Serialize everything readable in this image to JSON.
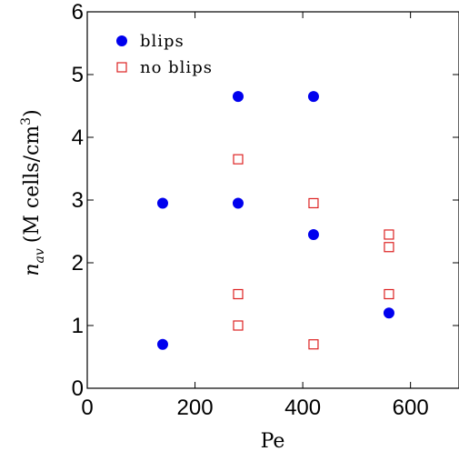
{
  "chart_data": {
    "type": "scatter",
    "xlabel": "Pe",
    "ylabel": "n_av (M cells/cm^3)",
    "ylabel_parts": {
      "symbol": "n",
      "subscript": "av",
      "unit_open": "(M cells/cm",
      "superscript": "3",
      "unit_close": ")"
    },
    "xlim": [
      0,
      690
    ],
    "ylim": [
      0,
      6
    ],
    "x_ticks": [
      0,
      200,
      400,
      600
    ],
    "y_ticks": [
      0,
      1,
      2,
      3,
      4,
      5,
      6
    ],
    "x_tick_labels": [
      "0",
      "200",
      "400",
      "600"
    ],
    "y_tick_labels": [
      "0",
      "1",
      "2",
      "3",
      "4",
      "5",
      "6"
    ],
    "grid": false,
    "legend_position": "top-left",
    "series": [
      {
        "name": "blips",
        "marker": "circle-filled",
        "color": "#0000ee",
        "points": [
          {
            "x": 140,
            "y": 0.7
          },
          {
            "x": 140,
            "y": 2.95
          },
          {
            "x": 280,
            "y": 2.95
          },
          {
            "x": 280,
            "y": 4.65
          },
          {
            "x": 420,
            "y": 4.65
          },
          {
            "x": 420,
            "y": 2.45
          },
          {
            "x": 560,
            "y": 1.2
          }
        ]
      },
      {
        "name": "no blips",
        "marker": "square-open",
        "color": "#dd2222",
        "points": [
          {
            "x": 280,
            "y": 3.65
          },
          {
            "x": 280,
            "y": 1.5
          },
          {
            "x": 280,
            "y": 1.0
          },
          {
            "x": 420,
            "y": 2.95
          },
          {
            "x": 420,
            "y": 0.7
          },
          {
            "x": 560,
            "y": 2.45
          },
          {
            "x": 560,
            "y": 2.25
          },
          {
            "x": 560,
            "y": 1.5
          }
        ]
      }
    ]
  }
}
